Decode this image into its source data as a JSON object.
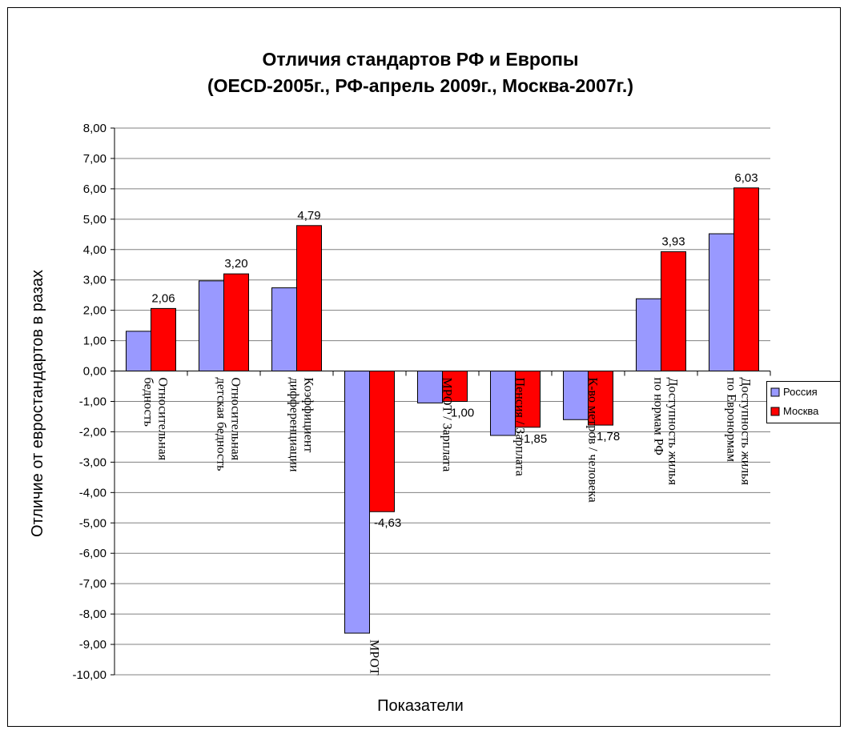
{
  "chart_data": {
    "type": "bar",
    "title_line1": "Отличия стандартов РФ и Европы",
    "title_line2": "(OECD-2005г., РФ-апрель 2009г., Москва-2007г.)",
    "xlabel": "Показатели",
    "ylabel": "Отличие от евростандартов в разах",
    "ylim": [
      -10,
      8
    ],
    "y_step": 1,
    "grid": true,
    "legend_position": "right",
    "y_tick_labels": [
      "8,00",
      "7,00",
      "6,00",
      "5,00",
      "4,00",
      "3,00",
      "2,00",
      "1,00",
      "0,00",
      "-1,00",
      "-2,00",
      "-3,00",
      "-4,00",
      "-5,00",
      "-6,00",
      "-7,00",
      "-8,00",
      "-9,00",
      "-10,00"
    ],
    "categories": [
      {
        "line1": "Относительная",
        "line2": "бедность"
      },
      {
        "line1": "Относительная",
        "line2": "детская бедность"
      },
      {
        "line1": "Коэффициент",
        "line2": "дифференциации"
      },
      {
        "line1": "МРОТ",
        "line2": ""
      },
      {
        "line1": "МРОТ / Зарплата",
        "line2": ""
      },
      {
        "line1": "Пенсия / Зарплата",
        "line2": ""
      },
      {
        "line1": "К-во метров / человека",
        "line2": ""
      },
      {
        "line1": "Доступность жилья",
        "line2": "по нормам РФ"
      },
      {
        "line1": "Доступность жилья",
        "line2": "по Евронормам"
      }
    ],
    "series": [
      {
        "name": "Россия",
        "color": "#9999ff",
        "values": [
          1.31,
          2.97,
          2.74,
          -8.63,
          -1.05,
          -2.12,
          -1.6,
          2.38,
          4.52
        ]
      },
      {
        "name": "Москва",
        "color": "#ff0000",
        "values": [
          2.06,
          3.2,
          4.79,
          -4.63,
          -1.0,
          -1.85,
          -1.78,
          3.93,
          6.03
        ]
      }
    ],
    "data_labels_series": "Москва",
    "data_labels": [
      "2,06",
      "3,20",
      "4,79",
      "-4,63",
      "-1,00",
      "-1,85",
      "-1,78",
      "3,93",
      "6,03"
    ]
  }
}
